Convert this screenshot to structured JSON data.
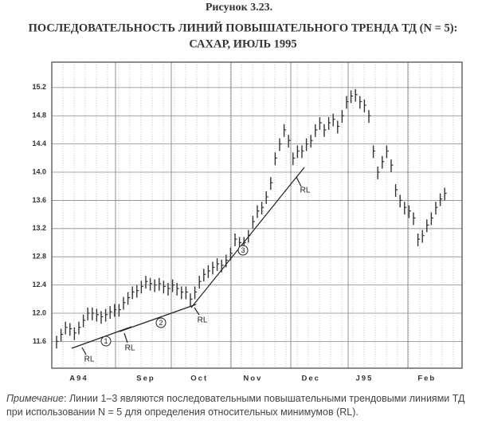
{
  "chart_data": {
    "type": "ohlc",
    "figure": "Рисунок 3.23.",
    "title": "ПОСЛЕДОВАТЕЛЬНОСТЬ ЛИНИЙ ПОВЫШАТЕЛЬНОГО ТРЕНДА ТД (N = 5):",
    "subtitle": "САХАР, ИЮЛЬ 1995",
    "categories": [
      null,
      null,
      null,
      null,
      null,
      "A94",
      null,
      null,
      null,
      null,
      null,
      null,
      null,
      null,
      null,
      null,
      null,
      null,
      null,
      null,
      "Sep",
      null,
      null,
      null,
      null,
      null,
      null,
      null,
      null,
      null,
      null,
      null,
      "Oct",
      null,
      null,
      null,
      null,
      null,
      null,
      null,
      null,
      null,
      null,
      null,
      "Nov",
      null,
      null,
      null,
      null,
      null,
      null,
      null,
      null,
      null,
      null,
      null,
      null,
      "Dec",
      null,
      null,
      null,
      null,
      null,
      null,
      null,
      null,
      null,
      null,
      null,
      "J95",
      null,
      null,
      null,
      null,
      null,
      null,
      null,
      null,
      null,
      null,
      null,
      null,
      null,
      "Feb",
      null,
      null,
      null,
      null
    ],
    "high": [
      11.68,
      11.78,
      11.88,
      11.86,
      11.8,
      11.88,
      11.98,
      12.08,
      12.08,
      12.06,
      12.03,
      12.06,
      12.1,
      12.13,
      12.13,
      12.23,
      12.3,
      12.38,
      12.4,
      12.46,
      12.53,
      12.5,
      12.48,
      12.5,
      12.46,
      12.43,
      12.48,
      12.43,
      12.38,
      12.38,
      12.28,
      12.38,
      12.53,
      12.63,
      12.68,
      12.73,
      12.78,
      12.76,
      12.83,
      12.93,
      13.13,
      13.08,
      13.08,
      13.18,
      13.38,
      13.53,
      13.58,
      13.73,
      13.93,
      14.28,
      14.48,
      14.68,
      14.53,
      14.28,
      14.38,
      14.38,
      14.48,
      14.53,
      14.68,
      14.78,
      14.68,
      14.78,
      14.83,
      14.73,
      14.88,
      15.08,
      15.16,
      15.18,
      15.08,
      15.03,
      14.88,
      14.38,
      14.08,
      14.23,
      14.38,
      14.18,
      13.83,
      13.68,
      13.58,
      13.53,
      13.43,
      13.13,
      13.18,
      13.33,
      13.43,
      13.58,
      13.7,
      13.78
    ],
    "low": [
      11.5,
      11.6,
      11.7,
      11.68,
      11.62,
      11.7,
      11.8,
      11.9,
      11.9,
      11.88,
      11.85,
      11.88,
      11.92,
      11.95,
      11.95,
      12.05,
      12.12,
      12.2,
      12.22,
      12.28,
      12.35,
      12.32,
      12.3,
      12.32,
      12.28,
      12.25,
      12.3,
      12.25,
      12.2,
      12.2,
      12.1,
      12.2,
      12.35,
      12.45,
      12.5,
      12.55,
      12.6,
      12.58,
      12.65,
      12.75,
      12.95,
      12.9,
      12.9,
      13.0,
      13.2,
      13.35,
      13.4,
      13.55,
      13.75,
      14.1,
      14.3,
      14.5,
      14.35,
      14.1,
      14.2,
      14.2,
      14.3,
      14.35,
      14.5,
      14.6,
      14.5,
      14.6,
      14.65,
      14.55,
      14.7,
      14.9,
      14.98,
      15.0,
      14.9,
      14.85,
      14.7,
      14.2,
      13.9,
      14.05,
      14.2,
      14.0,
      13.65,
      13.5,
      13.4,
      13.35,
      13.25,
      12.95,
      13.0,
      13.15,
      13.25,
      13.4,
      13.52,
      13.6
    ],
    "close": [
      11.6,
      11.7,
      11.8,
      11.78,
      11.72,
      11.8,
      11.9,
      12.0,
      12.0,
      11.98,
      11.95,
      11.98,
      12.02,
      12.05,
      12.05,
      12.15,
      12.22,
      12.3,
      12.32,
      12.38,
      12.45,
      12.42,
      12.4,
      12.42,
      12.38,
      12.35,
      12.4,
      12.35,
      12.3,
      12.3,
      12.2,
      12.3,
      12.45,
      12.55,
      12.6,
      12.65,
      12.7,
      12.68,
      12.75,
      12.85,
      13.05,
      13.0,
      13.0,
      13.1,
      13.3,
      13.45,
      13.5,
      13.65,
      13.85,
      14.2,
      14.4,
      14.6,
      14.45,
      14.2,
      14.3,
      14.3,
      14.4,
      14.45,
      14.6,
      14.7,
      14.6,
      14.7,
      14.75,
      14.65,
      14.8,
      15.0,
      15.08,
      15.1,
      15.0,
      14.95,
      14.8,
      14.3,
      14.0,
      14.15,
      14.3,
      14.1,
      13.75,
      13.6,
      13.5,
      13.45,
      13.35,
      13.05,
      13.1,
      13.25,
      13.35,
      13.5,
      13.62,
      13.7
    ],
    "color": "#333333",
    "ylim": [
      11.22,
      15.56
    ],
    "yticks": [
      11.6,
      {
        "value": 12,
        "label": "12.0"
      },
      12.4,
      12.8,
      13.2,
      13.6,
      {
        "value": 14,
        "label": "14.0"
      },
      14.4,
      14.8,
      15.2
    ],
    "grid": true,
    "annotations": [
      "RL",
      "RL",
      "RL",
      "RL"
    ],
    "line_labels": [
      "1",
      "2",
      "3"
    ],
    "note_label": "Примечание",
    "note": ": Линии 1–3 являются последовательными повышательными трендовыми линиями ТД при использовании N = 5 для определения относительных минимумов (RL)."
  }
}
